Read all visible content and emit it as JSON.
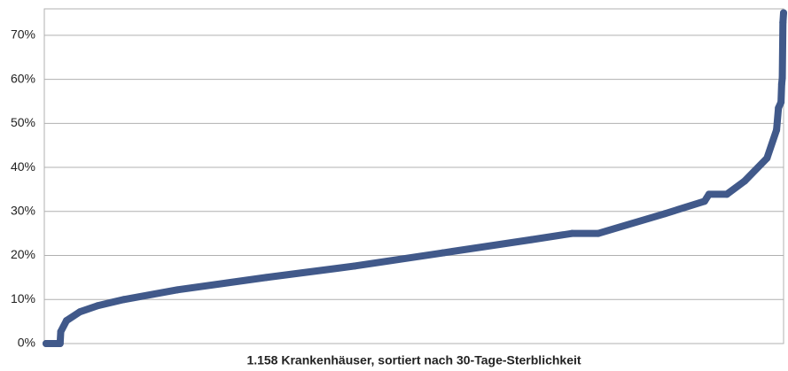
{
  "chart_data": {
    "type": "line",
    "xlabel": "1.158 Krankenhäuser, sortiert nach 30-Tage-Sterblichkeit",
    "x": [
      1,
      23,
      24,
      33,
      54,
      82,
      123,
      207,
      346,
      485,
      624,
      763,
      826,
      867,
      972,
      1034,
      1041,
      1069,
      1097,
      1132,
      1147,
      1150,
      1154,
      1155,
      1156,
      1157,
      1158
    ],
    "series": [
      {
        "color": "#41598a",
        "values": [
          0,
          0,
          2.7,
          5.2,
          7.2,
          8.6,
          10,
          12.2,
          15,
          17.6,
          20.6,
          23.6,
          25,
          25,
          29.5,
          32.3,
          33.9,
          33.9,
          36.9,
          42.1,
          48.5,
          53.5,
          54.8,
          58.9,
          60.3,
          72.9,
          75.1
        ]
      }
    ],
    "xlim": [
      1,
      1158
    ],
    "ylim": [
      0,
      76
    ],
    "yticks": [
      {
        "value": 0,
        "label": "0%"
      },
      {
        "value": 10,
        "label": "10%"
      },
      {
        "value": 20,
        "label": "20%"
      },
      {
        "value": 30,
        "label": "30%"
      },
      {
        "value": 40,
        "label": "40%"
      },
      {
        "value": 50,
        "label": "50%"
      },
      {
        "value": 60,
        "label": "60%"
      },
      {
        "value": 70,
        "label": "70%"
      }
    ],
    "grid": true
  }
}
